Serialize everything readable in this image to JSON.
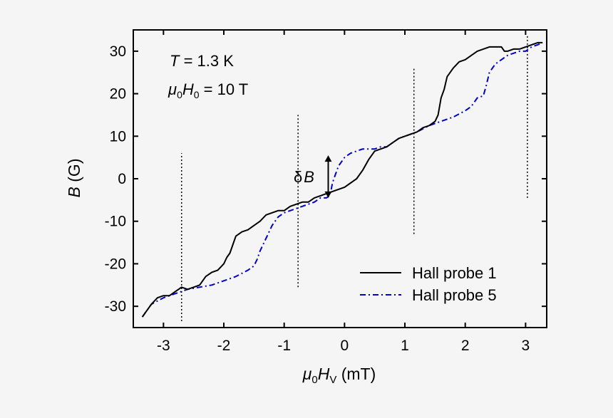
{
  "chart_data": {
    "type": "line",
    "xlabel": {
      "pre": "μ",
      "sub1": "0",
      "main": "H",
      "sub2": "V",
      "unit": " (mT)"
    },
    "ylabel": {
      "main": "B",
      "unit": " (G)"
    },
    "xlim": [
      -3.5,
      3.35
    ],
    "ylim": [
      -35,
      35
    ],
    "xticks": [
      -3,
      -2,
      -1,
      0,
      1,
      2,
      3
    ],
    "xtick_labels": [
      "-3",
      "-2",
      "-1",
      "0",
      "1",
      "2",
      "3"
    ],
    "yticks": [
      -30,
      -20,
      -10,
      0,
      10,
      20,
      30
    ],
    "ytick_labels": [
      "-30",
      "-20",
      "-10",
      "0",
      "10",
      "20",
      "30"
    ],
    "annotations": {
      "temperature": {
        "var": "T",
        "rest": " = 1.3 K"
      },
      "field": {
        "pre": "μ",
        "sub1": "0",
        "main": "H",
        "sub2": "0",
        "rest": " = 10 T"
      },
      "deltaB": {
        "pre": "δ",
        "main": "B"
      }
    },
    "vlines": [
      {
        "x": -2.7,
        "y_from": -33.5,
        "y_to": 6
      },
      {
        "x": -0.77,
        "y_from": -25.5,
        "y_to": 15
      },
      {
        "x": 1.15,
        "y_from": -13,
        "y_to": 26
      },
      {
        "x": 3.03,
        "y_from": -4.5,
        "y_to": 34
      }
    ],
    "deltaB_arrow": {
      "x": -0.27,
      "y_from": -4.5,
      "y_to": 5.5
    },
    "legend_position": "bottom-right",
    "series": [
      {
        "name": "Hall probe 1",
        "color": "#000000",
        "style": "solid",
        "x": [
          -3.35,
          -3.3,
          -3.2,
          -3.1,
          -3.0,
          -2.9,
          -2.8,
          -2.75,
          -2.7,
          -2.6,
          -2.5,
          -2.4,
          -2.3,
          -2.2,
          -2.1,
          -2.0,
          -1.95,
          -1.9,
          -1.8,
          -1.75,
          -1.7,
          -1.6,
          -1.5,
          -1.4,
          -1.3,
          -1.2,
          -1.1,
          -1.0,
          -0.9,
          -0.8,
          -0.7,
          -0.6,
          -0.5,
          -0.4,
          -0.3,
          -0.2,
          -0.1,
          0.0,
          0.1,
          0.2,
          0.3,
          0.4,
          0.5,
          0.6,
          0.7,
          0.8,
          0.9,
          1.0,
          1.1,
          1.2,
          1.3,
          1.4,
          1.5,
          1.55,
          1.6,
          1.65,
          1.7,
          1.8,
          1.9,
          2.0,
          2.1,
          2.2,
          2.3,
          2.4,
          2.5,
          2.6,
          2.65,
          2.7,
          2.8,
          2.9,
          3.0,
          3.1,
          3.2,
          3.28
        ],
        "y": [
          -32.5,
          -31.5,
          -29.5,
          -28,
          -27.5,
          -27.5,
          -26.5,
          -26,
          -25.5,
          -26,
          -25.5,
          -25,
          -23,
          -22,
          -21.5,
          -20,
          -18.5,
          -17.5,
          -13.5,
          -13,
          -12.5,
          -12,
          -11,
          -10,
          -8.5,
          -8,
          -7.5,
          -7.5,
          -6.5,
          -6,
          -5.5,
          -5.5,
          -4.5,
          -4,
          -3.5,
          -3,
          -2.5,
          -2,
          -1,
          0,
          2,
          4.5,
          6.5,
          7,
          7.5,
          8.5,
          9.5,
          10,
          10.5,
          11,
          12,
          12.5,
          13.5,
          15,
          19,
          21,
          24,
          26,
          27.5,
          28,
          29,
          30,
          30.5,
          31,
          31,
          31,
          30,
          30,
          30.5,
          30.5,
          31,
          31.5,
          32,
          32
        ]
      },
      {
        "name": "Hall probe 5",
        "color": "#0000cc",
        "style": "dashdot",
        "x": [
          -3.35,
          -3.3,
          -3.2,
          -3.0,
          -2.8,
          -2.6,
          -2.4,
          -2.2,
          -2.0,
          -1.8,
          -1.6,
          -1.5,
          -1.45,
          -1.4,
          -1.3,
          -1.2,
          -1.1,
          -1.0,
          -0.9,
          -0.8,
          -0.7,
          -0.6,
          -0.5,
          -0.4,
          -0.3,
          -0.25,
          -0.22,
          -0.2,
          -0.15,
          -0.1,
          0.0,
          0.1,
          0.2,
          0.3,
          0.4,
          0.5,
          0.6,
          0.7,
          0.8,
          0.9,
          1.0,
          1.2,
          1.4,
          1.6,
          1.8,
          2.0,
          2.1,
          2.2,
          2.3,
          2.35,
          2.4,
          2.5,
          2.6,
          2.7,
          2.8,
          2.9,
          3.0,
          3.1,
          3.2,
          3.28
        ],
        "y": [
          -32.5,
          -31.5,
          -29.5,
          -28,
          -27,
          -26,
          -25.5,
          -25,
          -24,
          -23,
          -21.5,
          -20.5,
          -19,
          -17,
          -14,
          -11,
          -9,
          -8,
          -7.5,
          -7,
          -6.5,
          -6,
          -5.5,
          -4.5,
          -4.5,
          -4,
          -2.5,
          -1,
          1,
          3,
          5,
          6,
          6.5,
          7,
          7,
          7,
          7.5,
          7.5,
          8.5,
          9.5,
          10,
          11,
          12.5,
          13.5,
          14.5,
          16,
          17,
          19,
          19.5,
          22,
          25,
          27,
          28,
          29,
          29.5,
          30,
          30,
          31,
          31.5,
          32
        ]
      }
    ]
  }
}
